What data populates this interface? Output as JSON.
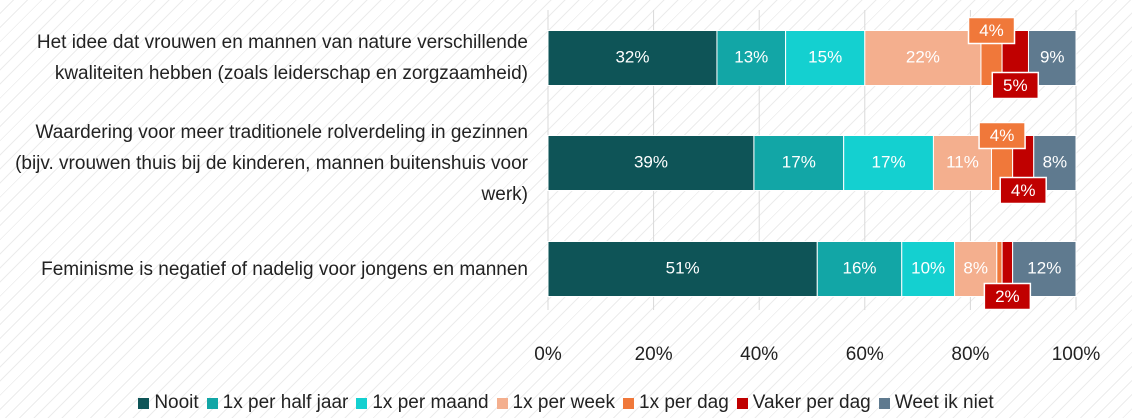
{
  "chart_data": {
    "type": "stacked_bar_horizontal",
    "categories": [
      "Het idee dat vrouwen en mannen van nature verschillende kwaliteiten hebben (zoals leiderschap en zorgzaamheid)",
      "Waardering voor meer traditionele rolverdeling in gezinnen (bijv. vrouwen thuis bij de kinderen, mannen buitenshuis voor werk)",
      "Feminisme is negatief of nadelig voor jongens en mannen"
    ],
    "series": [
      {
        "name": "Nooit",
        "color": "#0e5457",
        "values": [
          32,
          39,
          51
        ],
        "value_labels": [
          "32%",
          "39%",
          "51%"
        ]
      },
      {
        "name": "1x per half jaar",
        "color": "#12a6a6",
        "values": [
          13,
          17,
          16
        ],
        "value_labels": [
          "13%",
          "17%",
          "16%"
        ]
      },
      {
        "name": "1x per maand",
        "color": "#14d0d0",
        "values": [
          15,
          17,
          10
        ],
        "value_labels": [
          "15%",
          "17%",
          "10%"
        ]
      },
      {
        "name": "1x per week",
        "color": "#f4af8e",
        "values": [
          22,
          11,
          8
        ],
        "value_labels": [
          "22%",
          "11%",
          "8%"
        ]
      },
      {
        "name": "1x per dag",
        "color": "#f0783a",
        "values": [
          4,
          4,
          1
        ],
        "value_labels": [
          "4%",
          "4%",
          null
        ]
      },
      {
        "name": "Vaker per dag",
        "color": "#c00000",
        "values": [
          5,
          4,
          2
        ],
        "value_labels": [
          "5%",
          "4%",
          "2%"
        ]
      },
      {
        "name": "Weet ik niet",
        "color": "#5f7a8f",
        "values": [
          9,
          8,
          12
        ],
        "value_labels": [
          "9%",
          "8%",
          "12%"
        ]
      }
    ],
    "xlim": [
      0,
      100
    ],
    "xticks": [
      {
        "value": 0,
        "label": "0%"
      },
      {
        "value": 20,
        "label": "20%"
      },
      {
        "value": 40,
        "label": "40%"
      },
      {
        "value": 60,
        "label": "60%"
      },
      {
        "value": 80,
        "label": "80%"
      },
      {
        "value": 100,
        "label": "100%"
      }
    ],
    "grid": true,
    "legend": "bottom"
  }
}
